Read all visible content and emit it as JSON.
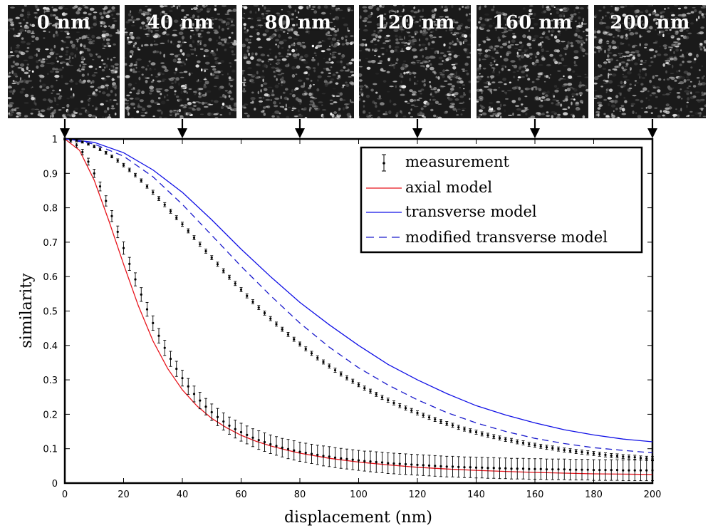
{
  "speckle_panels": [
    {
      "label": "0 nm",
      "displacement": 0
    },
    {
      "label": "40 nm",
      "displacement": 40
    },
    {
      "label": "80 nm",
      "displacement": 80
    },
    {
      "label": "120 nm",
      "displacement": 120
    },
    {
      "label": "160 nm",
      "displacement": 160
    },
    {
      "label": "200 nm",
      "displacement": 200
    }
  ],
  "chart_data": {
    "type": "line",
    "xlabel": "displacement (nm)",
    "ylabel": "similarity",
    "xlim": [
      0,
      200
    ],
    "ylim": [
      0,
      1
    ],
    "xticks": [
      0,
      20,
      40,
      60,
      80,
      100,
      120,
      140,
      160,
      180,
      200
    ],
    "yticks": [
      0,
      0.1,
      0.2,
      0.3,
      0.4,
      0.5,
      0.6,
      0.7,
      0.8,
      0.9,
      1
    ],
    "grid": false,
    "legend_position": "top-right",
    "colors": {
      "measurement": "#000000",
      "axial": "#e8141c",
      "transverse": "#1010e6",
      "modified": "#1a1acc"
    },
    "series": [
      {
        "name": "axial model",
        "style": "solid",
        "x": [
          0,
          5,
          10,
          15,
          20,
          25,
          30,
          35,
          40,
          45,
          50,
          55,
          60,
          65,
          70,
          75,
          80,
          90,
          100,
          110,
          120,
          130,
          140,
          150,
          160,
          170,
          180,
          190,
          200
        ],
        "y": [
          1,
          0.967,
          0.88,
          0.762,
          0.636,
          0.516,
          0.413,
          0.333,
          0.271,
          0.224,
          0.188,
          0.161,
          0.139,
          0.122,
          0.108,
          0.097,
          0.087,
          0.072,
          0.061,
          0.053,
          0.046,
          0.041,
          0.037,
          0.034,
          0.031,
          0.029,
          0.027,
          0.026,
          0.025
        ]
      },
      {
        "name": "transverse model",
        "style": "solid",
        "x": [
          0,
          10,
          20,
          30,
          40,
          50,
          60,
          70,
          80,
          90,
          100,
          110,
          120,
          130,
          140,
          150,
          160,
          170,
          180,
          190,
          200
        ],
        "y": [
          1,
          0.99,
          0.96,
          0.91,
          0.845,
          0.765,
          0.68,
          0.6,
          0.525,
          0.46,
          0.4,
          0.345,
          0.3,
          0.26,
          0.225,
          0.198,
          0.175,
          0.155,
          0.14,
          0.128,
          0.12
        ]
      },
      {
        "name": "modified transverse model",
        "style": "dashed",
        "x": [
          0,
          10,
          20,
          30,
          40,
          50,
          60,
          70,
          80,
          90,
          100,
          110,
          120,
          130,
          140,
          150,
          160,
          170,
          180,
          190,
          200
        ],
        "y": [
          1,
          0.985,
          0.95,
          0.89,
          0.81,
          0.72,
          0.63,
          0.545,
          0.465,
          0.395,
          0.335,
          0.285,
          0.242,
          0.205,
          0.175,
          0.15,
          0.13,
          0.115,
          0.103,
          0.095,
          0.088
        ]
      },
      {
        "name": "measurement",
        "style": "errorbar",
        "sets": [
          {
            "x": [
              0,
              2,
              4,
              6,
              8,
              10,
              12,
              14,
              16,
              18,
              20,
              22,
              24,
              26,
              28,
              30,
              32,
              34,
              36,
              38,
              40,
              42,
              44,
              46,
              48,
              50,
              52,
              54,
              56,
              58,
              60,
              62,
              64,
              66,
              68,
              70,
              72,
              74,
              76,
              78,
              80,
              82,
              84,
              86,
              88,
              90,
              92,
              94,
              96,
              98,
              100,
              102,
              104,
              106,
              108,
              110,
              112,
              114,
              116,
              118,
              120,
              122,
              124,
              126,
              128,
              130,
              132,
              134,
              136,
              138,
              140,
              142,
              144,
              146,
              148,
              150,
              152,
              154,
              156,
              158,
              160,
              162,
              164,
              166,
              168,
              170,
              172,
              174,
              176,
              178,
              180,
              182,
              184,
              186,
              188,
              190,
              192,
              194,
              196,
              198,
              200
            ],
            "y": [
              1,
              0.995,
              0.982,
              0.962,
              0.934,
              0.9,
              0.862,
              0.82,
              0.776,
              0.73,
              0.683,
              0.637,
              0.592,
              0.548,
              0.505,
              0.465,
              0.428,
              0.393,
              0.361,
              0.332,
              0.305,
              0.281,
              0.259,
              0.24,
              0.222,
              0.206,
              0.192,
              0.179,
              0.167,
              0.157,
              0.148,
              0.14,
              0.132,
              0.125,
              0.119,
              0.113,
              0.108,
              0.103,
              0.099,
              0.095,
              0.091,
              0.088,
              0.085,
              0.082,
              0.079,
              0.077,
              0.074,
              0.072,
              0.07,
              0.068,
              0.066,
              0.064,
              0.063,
              0.061,
              0.06,
              0.058,
              0.057,
              0.056,
              0.055,
              0.054,
              0.053,
              0.052,
              0.051,
              0.05,
              0.049,
              0.048,
              0.048,
              0.047,
              0.046,
              0.046,
              0.045,
              0.045,
              0.044,
              0.044,
              0.043,
              0.043,
              0.042,
              0.042,
              0.042,
              0.041,
              0.041,
              0.041,
              0.04,
              0.04,
              0.04,
              0.04,
              0.039,
              0.039,
              0.039,
              0.039,
              0.038,
              0.038,
              0.038,
              0.038,
              0.038,
              0.037,
              0.037,
              0.037,
              0.037,
              0.037,
              0.037
            ],
            "err": [
              0.003,
              0.004,
              0.006,
              0.008,
              0.01,
              0.012,
              0.013,
              0.015,
              0.016,
              0.017,
              0.018,
              0.019,
              0.019,
              0.02,
              0.02,
              0.021,
              0.021,
              0.022,
              0.022,
              0.022,
              0.023,
              0.023,
              0.023,
              0.024,
              0.024,
              0.024,
              0.025,
              0.025,
              0.025,
              0.026,
              0.026,
              0.026,
              0.026,
              0.027,
              0.027,
              0.027,
              0.027,
              0.027,
              0.028,
              0.028,
              0.028,
              0.028,
              0.028,
              0.028,
              0.029,
              0.029,
              0.029,
              0.029,
              0.029,
              0.029,
              0.029,
              0.029,
              0.03,
              0.03,
              0.03,
              0.03,
              0.03,
              0.03,
              0.03,
              0.03,
              0.03,
              0.03,
              0.03,
              0.03,
              0.03,
              0.03,
              0.03,
              0.03,
              0.03,
              0.03,
              0.03,
              0.03,
              0.03,
              0.03,
              0.03,
              0.03,
              0.03,
              0.03,
              0.03,
              0.03,
              0.03,
              0.03,
              0.03,
              0.03,
              0.03,
              0.03,
              0.03,
              0.03,
              0.03,
              0.03,
              0.03,
              0.03,
              0.03,
              0.03,
              0.03,
              0.03,
              0.03,
              0.03,
              0.03,
              0.03,
              0.03
            ]
          },
          {
            "x": [
              0,
              2,
              4,
              6,
              8,
              10,
              12,
              14,
              16,
              18,
              20,
              22,
              24,
              26,
              28,
              30,
              32,
              34,
              36,
              38,
              40,
              42,
              44,
              46,
              48,
              50,
              52,
              54,
              56,
              58,
              60,
              62,
              64,
              66,
              68,
              70,
              72,
              74,
              76,
              78,
              80,
              82,
              84,
              86,
              88,
              90,
              92,
              94,
              96,
              98,
              100,
              102,
              104,
              106,
              108,
              110,
              112,
              114,
              116,
              118,
              120,
              122,
              124,
              126,
              128,
              130,
              132,
              134,
              136,
              138,
              140,
              142,
              144,
              146,
              148,
              150,
              152,
              154,
              156,
              158,
              160,
              162,
              164,
              166,
              168,
              170,
              172,
              174,
              176,
              178,
              180,
              182,
              184,
              186,
              188,
              190,
              192,
              194,
              196,
              198,
              200
            ],
            "y": [
              1,
              0.999,
              0.996,
              0.991,
              0.985,
              0.978,
              0.97,
              0.96,
              0.949,
              0.937,
              0.924,
              0.91,
              0.895,
              0.879,
              0.862,
              0.845,
              0.827,
              0.809,
              0.79,
              0.771,
              0.752,
              0.733,
              0.713,
              0.694,
              0.674,
              0.655,
              0.636,
              0.617,
              0.598,
              0.58,
              0.562,
              0.544,
              0.527,
              0.51,
              0.494,
              0.478,
              0.462,
              0.447,
              0.432,
              0.418,
              0.404,
              0.39,
              0.377,
              0.364,
              0.352,
              0.34,
              0.328,
              0.317,
              0.306,
              0.296,
              0.286,
              0.276,
              0.267,
              0.258,
              0.249,
              0.241,
              0.233,
              0.225,
              0.218,
              0.211,
              0.204,
              0.197,
              0.191,
              0.185,
              0.179,
              0.173,
              0.168,
              0.162,
              0.157,
              0.152,
              0.148,
              0.143,
              0.139,
              0.135,
              0.131,
              0.127,
              0.124,
              0.12,
              0.117,
              0.113,
              0.11,
              0.107,
              0.104,
              0.102,
              0.099,
              0.096,
              0.094,
              0.092,
              0.09,
              0.088,
              0.086,
              0.084,
              0.082,
              0.08,
              0.079,
              0.077,
              0.076,
              0.075,
              0.073,
              0.072,
              0.071
            ],
            "err": [
              0.002,
              0.002,
              0.003,
              0.003,
              0.003,
              0.004,
              0.004,
              0.004,
              0.004,
              0.005,
              0.005,
              0.005,
              0.005,
              0.005,
              0.005,
              0.006,
              0.006,
              0.006,
              0.006,
              0.006,
              0.006,
              0.006,
              0.006,
              0.006,
              0.006,
              0.006,
              0.006,
              0.006,
              0.006,
              0.006,
              0.006,
              0.006,
              0.006,
              0.006,
              0.006,
              0.006,
              0.006,
              0.006,
              0.006,
              0.006,
              0.006,
              0.006,
              0.006,
              0.006,
              0.006,
              0.006,
              0.006,
              0.006,
              0.006,
              0.006,
              0.006,
              0.006,
              0.006,
              0.006,
              0.006,
              0.006,
              0.006,
              0.006,
              0.006,
              0.006,
              0.006,
              0.006,
              0.006,
              0.006,
              0.006,
              0.006,
              0.006,
              0.006,
              0.006,
              0.006,
              0.006,
              0.006,
              0.006,
              0.006,
              0.006,
              0.006,
              0.006,
              0.006,
              0.006,
              0.006,
              0.006,
              0.006,
              0.006,
              0.006,
              0.006,
              0.006,
              0.006,
              0.006,
              0.006,
              0.006,
              0.006,
              0.006,
              0.006,
              0.006,
              0.006,
              0.006,
              0.006,
              0.006,
              0.006,
              0.006,
              0.006
            ]
          }
        ]
      }
    ],
    "legend": [
      "measurement",
      "axial model",
      "transverse model",
      "modified transverse model"
    ]
  }
}
